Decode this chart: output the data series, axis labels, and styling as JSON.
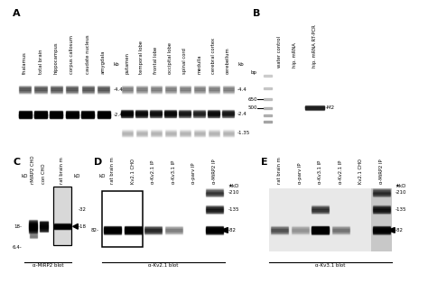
{
  "bg_color": "#ffffff",
  "panel_label_fontsize": 8,
  "panel_A_left_lanes": [
    "thalamus",
    "total brain",
    "hippocampus",
    "corpus callosum",
    "caudate nucleus",
    "amygdala"
  ],
  "panel_A_right_lanes": [
    "putamen",
    "temporal lobe",
    "frontal lobe",
    "occipital lobe",
    "spinal cord",
    "medulla",
    "cerebral cortex",
    "cerebellum"
  ],
  "panel_B_lanes": [
    "water control",
    "hip. mRNA",
    "hip. mRNA RT-PCR"
  ],
  "panel_C_lanes": [
    "rMiRP2 CHO",
    "con CHO",
    "rat brain m"
  ],
  "panel_D_lanes": [
    "rat brain m",
    "Kv2.1 CHO",
    "α-Kv2.1 IP",
    "α-Kv3.1 IP",
    "α-parv IP",
    "α-MiRP2 IP"
  ],
  "panel_E_lanes": [
    "rat brain m",
    "α-parv IP",
    "α-Kv3.1 IP",
    "α-Kv2.1 IP",
    "Kv2.1 CHO",
    "α-MiRP2 IP"
  ]
}
